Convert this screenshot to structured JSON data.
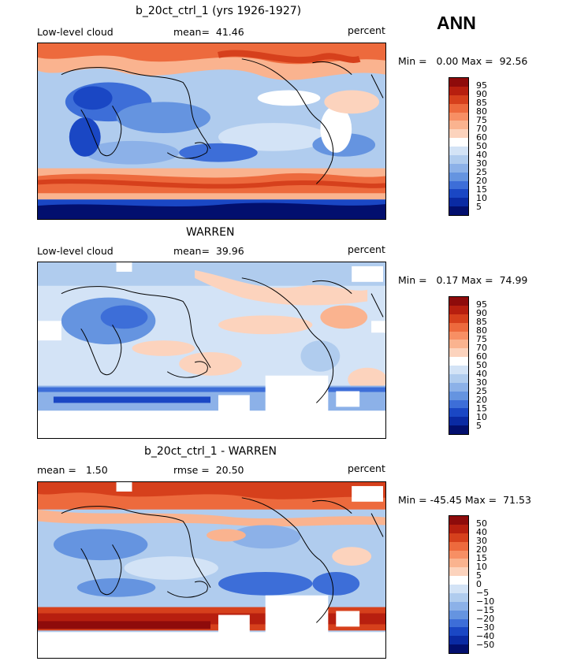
{
  "season": "ANN",
  "panels": [
    {
      "title": "b_20ct_ctrl_1 (yrs 1926-1927)",
      "left_label": "Low-level cloud",
      "center_label": "mean=  41.46",
      "right_label": "percent",
      "minmax": "Min =   0.00 Max =  92.56",
      "colorbar_ticks": [
        "95",
        "90",
        "85",
        "80",
        "75",
        "70",
        "60",
        "50",
        "40",
        "30",
        "25",
        "20",
        "15",
        "10",
        "5"
      ],
      "colorbar_colors": [
        "#8e0b0b",
        "#b71f0f",
        "#d6401c",
        "#ed6a3d",
        "#f78f64",
        "#fab38f",
        "#fcd3bd",
        "#ffffff",
        "#d3e3f6",
        "#b0ccee",
        "#8cb1e8",
        "#6594e0",
        "#3d6ed8",
        "#1a47c4",
        "#0a2aa3",
        "#020f6e"
      ]
    },
    {
      "title": "WARREN",
      "left_label": "Low-level cloud",
      "center_label": "mean=  39.96",
      "right_label": "percent",
      "minmax": "Min =   0.17 Max =  74.99",
      "colorbar_ticks": [
        "95",
        "90",
        "85",
        "80",
        "75",
        "70",
        "60",
        "50",
        "40",
        "30",
        "25",
        "20",
        "15",
        "10",
        "5"
      ],
      "colorbar_colors": [
        "#8e0b0b",
        "#b71f0f",
        "#d6401c",
        "#ed6a3d",
        "#f78f64",
        "#fab38f",
        "#fcd3bd",
        "#ffffff",
        "#d3e3f6",
        "#b0ccee",
        "#8cb1e8",
        "#6594e0",
        "#3d6ed8",
        "#1a47c4",
        "#0a2aa3",
        "#020f6e"
      ]
    },
    {
      "title": "b_20ct_ctrl_1 - WARREN",
      "left_label": "mean =   1.50",
      "center_label": "rmse =  20.50",
      "right_label": "percent",
      "minmax": "Min = -45.45 Max =  71.53",
      "colorbar_ticks": [
        "50",
        "40",
        "30",
        "20",
        "15",
        "10",
        "5",
        "0",
        "−5",
        "−10",
        "−15",
        "−20",
        "−30",
        "−40",
        "−50"
      ],
      "colorbar_colors": [
        "#8e0b0b",
        "#b71f0f",
        "#d6401c",
        "#ed6a3d",
        "#f78f64",
        "#fab38f",
        "#fcd3bd",
        "#ffffff",
        "#d3e3f6",
        "#b0ccee",
        "#8cb1e8",
        "#6594e0",
        "#3d6ed8",
        "#1a47c4",
        "#0a2aa3",
        "#020f6e"
      ]
    }
  ]
}
